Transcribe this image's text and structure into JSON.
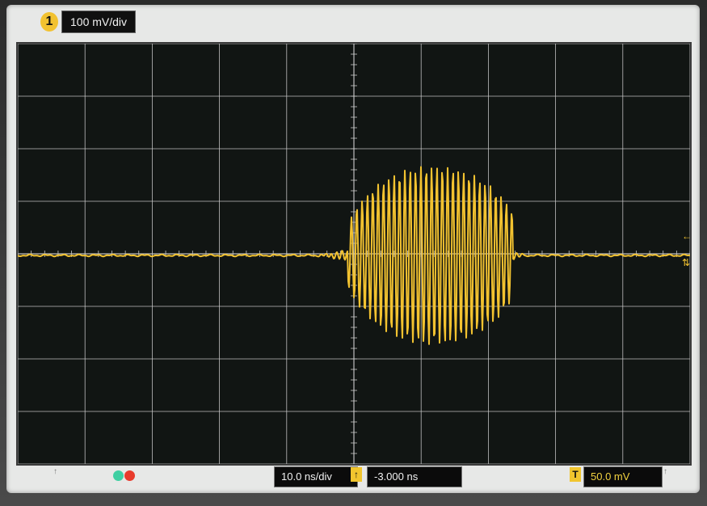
{
  "channel": {
    "number": "1",
    "scale": "100 mV/div",
    "color": "#f2c230"
  },
  "timebase": {
    "scale": "10.0 ns/div",
    "delay": "-3.000 ns"
  },
  "trigger": {
    "level": "50.0 mV"
  },
  "icons": {
    "delay_marker": "trigger-delay-icon",
    "trigger_marker": "trigger-icon",
    "status_dots": [
      "green-status-dot-icon",
      "red-status-dot-icon"
    ]
  },
  "colors": {
    "screen_background": "#e7e8e7",
    "plot_background": "#111513",
    "grid": "#c8c8c8",
    "trace": "#f2c230"
  }
}
